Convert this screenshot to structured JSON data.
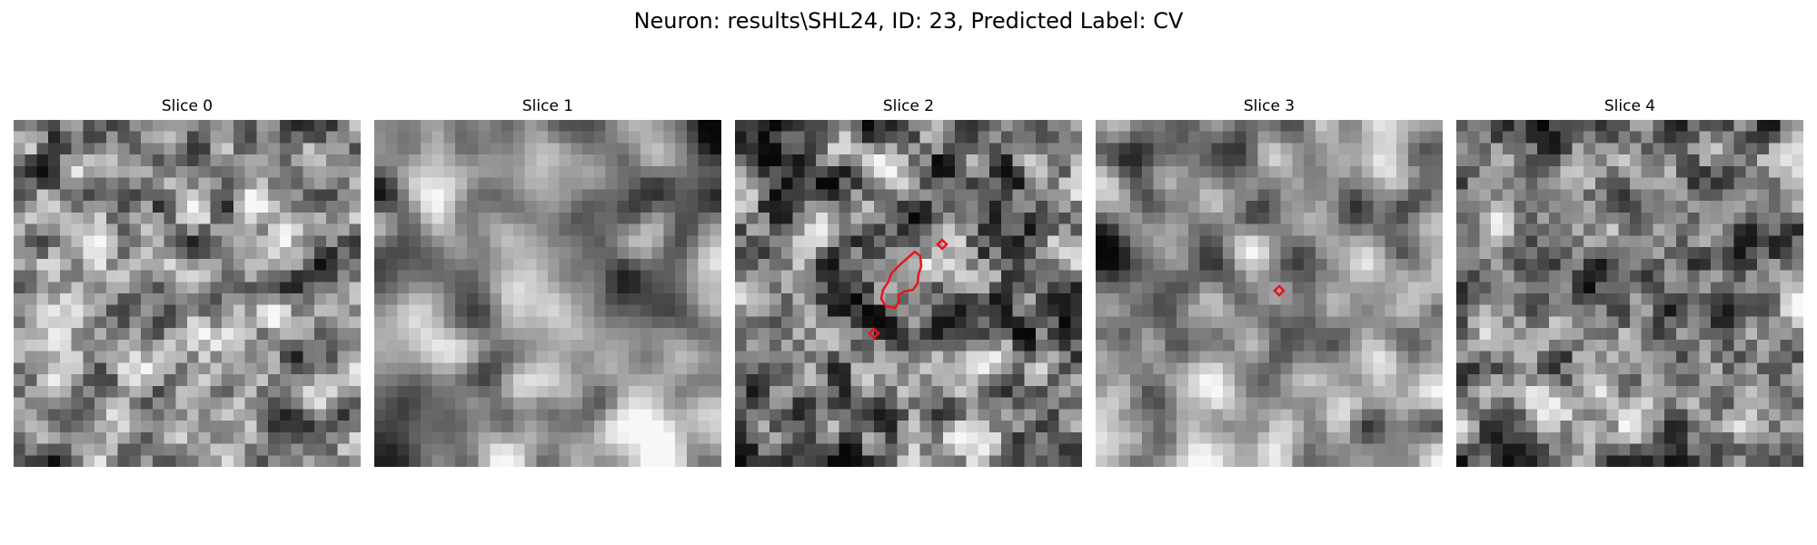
{
  "figure": {
    "title": "Neuron: results\\SHL24, ID: 23, Predicted Label: CV"
  },
  "panels": [
    {
      "title": "Slice 0",
      "seed": 11,
      "smooth": 1,
      "contrast": 1.0,
      "bias": 0.55
    },
    {
      "title": "Slice 1",
      "seed": 23,
      "smooth": 3,
      "contrast": 1.3,
      "bias": 0.55
    },
    {
      "title": "Slice 2",
      "seed": 37,
      "smooth": 1,
      "contrast": 1.1,
      "bias": 0.5
    },
    {
      "title": "Slice 3",
      "seed": 51,
      "smooth": 2,
      "contrast": 1.1,
      "bias": 0.45
    },
    {
      "title": "Slice 4",
      "seed": 67,
      "smooth": 1,
      "contrast": 1.0,
      "bias": 0.5
    }
  ],
  "overlay_color": "#e8141c"
}
